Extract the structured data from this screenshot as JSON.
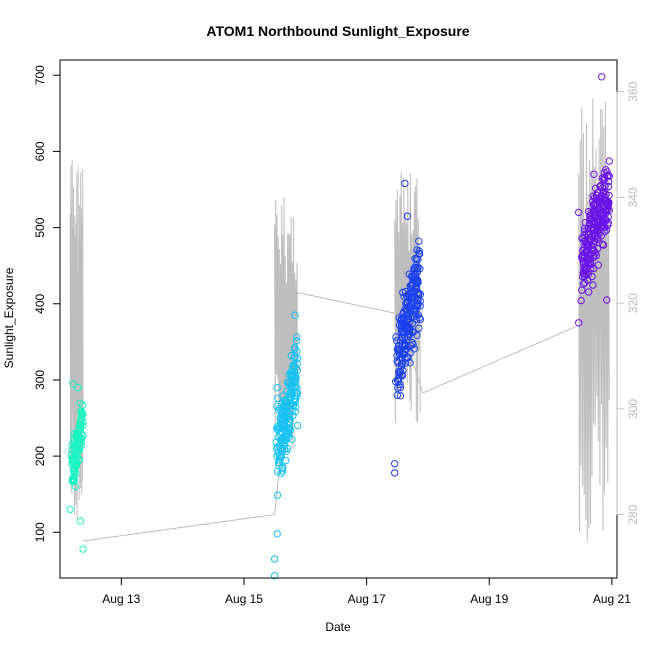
{
  "title": "ATOM1 Northbound Sunlight_Exposure",
  "xlabel": "Date",
  "ylabel": "Sunlight_Exposure",
  "chart_data": {
    "type": "scatter",
    "title": "ATOM1 Northbound Sunlight_Exposure",
    "xlabel": "Date",
    "ylabel": "Sunlight_Exposure",
    "x_ticks": [
      "Aug 13",
      "Aug 15",
      "Aug 17",
      "Aug 19",
      "Aug 21"
    ],
    "x_tick_values": [
      "08-13",
      "08-15",
      "08-17",
      "08-19",
      "08-21"
    ],
    "xlim": [
      "08-12 00:00",
      "08-21 02:00"
    ],
    "y_ticks": [
      100,
      200,
      300,
      400,
      500,
      600,
      700
    ],
    "ylim": [
      40,
      720
    ],
    "y2_ticks": [
      280,
      300,
      320,
      340,
      360
    ],
    "y2_ylim": [
      268,
      366
    ],
    "grid": false,
    "legend": "none",
    "secondary_series": {
      "color": "#bebebe",
      "axis": "right",
      "line_points": [
        {
          "x": "08-12 09:00",
          "y": 275
        },
        {
          "x": "08-15 12:00",
          "y": 280
        },
        {
          "x": "08-15 21:00",
          "y": 322
        },
        {
          "x": "08-17 12:00",
          "y": 318
        },
        {
          "x": "08-17 22:00",
          "y": 303
        },
        {
          "x": "08-20 12:00",
          "y": 316
        }
      ],
      "spike_clusters": [
        {
          "x_start": "08-12 04:00",
          "x_end": "08-12 09:00",
          "y_min": 278,
          "y_max": 349
        },
        {
          "x_start": "08-15 12:00",
          "x_end": "08-15 21:00",
          "y_min": 290,
          "y_max": 341
        },
        {
          "x_start": "08-17 11:00",
          "x_end": "08-17 21:00",
          "y_min": 297,
          "y_max": 345
        },
        {
          "x_start": "08-20 11:00",
          "x_end": "08-20 23:00",
          "y_min": 275,
          "y_max": 359
        }
      ]
    },
    "series": [
      {
        "color": "#19f5c2",
        "x_range": [
          "08-12 04:00",
          "08-12 09:00"
        ],
        "y_range": [
          78,
          295
        ],
        "y_center": 215,
        "n": 90,
        "points": [
          {
            "x": "08-12 04:00",
            "y": 130
          },
          {
            "x": "08-12 05:00",
            "y": 295
          },
          {
            "x": "08-12 06:00",
            "y": 160
          },
          {
            "x": "08-12 07:00",
            "y": 290
          },
          {
            "x": "08-12 08:00",
            "y": 115
          },
          {
            "x": "08-12 08:00",
            "y": 240
          },
          {
            "x": "08-12 09:00",
            "y": 78
          }
        ]
      },
      {
        "color": "#16c2f2",
        "x_range": [
          "08-15 12:00",
          "08-15 21:00"
        ],
        "y_range": [
          43,
          385
        ],
        "y_center": 260,
        "n": 170,
        "points": [
          {
            "x": "08-15 12:00",
            "y": 43
          },
          {
            "x": "08-15 12:00",
            "y": 65
          },
          {
            "x": "08-15 13:00",
            "y": 98
          },
          {
            "x": "08-15 13:00",
            "y": 290
          },
          {
            "x": "08-15 17:00",
            "y": 210
          },
          {
            "x": "08-15 20:00",
            "y": 385
          },
          {
            "x": "08-15 21:00",
            "y": 240
          }
        ]
      },
      {
        "color": "#1a40ee",
        "x_range": [
          "08-17 11:00",
          "08-17 21:00"
        ],
        "y_range": [
          178,
          558
        ],
        "y_center": 380,
        "n": 190,
        "points": [
          {
            "x": "08-17 11:00",
            "y": 178
          },
          {
            "x": "08-17 11:00",
            "y": 190
          },
          {
            "x": "08-17 12:00",
            "y": 280
          },
          {
            "x": "08-17 15:00",
            "y": 558
          },
          {
            "x": "08-17 16:00",
            "y": 515
          },
          {
            "x": "08-17 20:00",
            "y": 430
          }
        ]
      },
      {
        "color": "#6a14e8",
        "x_range": [
          "08-20 11:00",
          "08-20 23:00"
        ],
        "y_range": [
          375,
          698
        ],
        "y_center": 500,
        "n": 220,
        "points": [
          {
            "x": "08-20 11:00",
            "y": 375
          },
          {
            "x": "08-20 11:00",
            "y": 520
          },
          {
            "x": "08-20 17:00",
            "y": 570
          },
          {
            "x": "08-20 20:00",
            "y": 698
          },
          {
            "x": "08-20 22:00",
            "y": 405
          }
        ]
      }
    ]
  }
}
